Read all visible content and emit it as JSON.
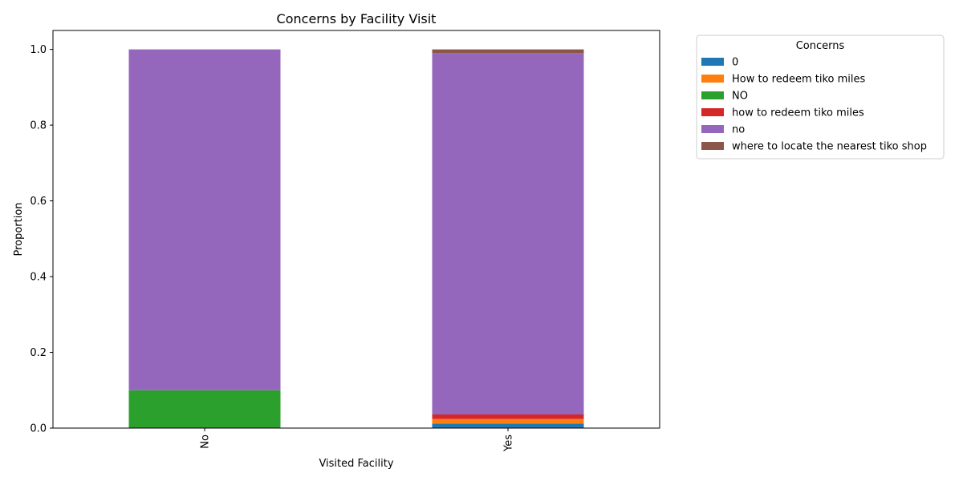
{
  "chart_data": {
    "type": "bar",
    "stacked": true,
    "title": "Concerns by Facility Visit",
    "xlabel": "Visited Facility",
    "ylabel": "Proportion",
    "categories": [
      "No",
      "Yes"
    ],
    "ylim": [
      0,
      1.05
    ],
    "yticks": [
      "0.0",
      "0.2",
      "0.4",
      "0.6",
      "0.8",
      "1.0"
    ],
    "grid": false,
    "legend_title": "Concerns",
    "legend_position": "outside-right",
    "series": [
      {
        "name": "0",
        "color": "#1f77b4",
        "values": [
          0,
          0.012
        ]
      },
      {
        "name": "How to redeem tiko miles",
        "color": "#ff7f0e",
        "values": [
          0,
          0.012
        ]
      },
      {
        "name": "NO",
        "color": "#2ca02c",
        "values": [
          0.1,
          0
        ]
      },
      {
        "name": "how to redeem tiko miles",
        "color": "#d62728",
        "values": [
          0,
          0.012
        ]
      },
      {
        "name": "no",
        "color": "#9467bd",
        "values": [
          0.9,
          0.954
        ]
      },
      {
        "name": "where to locate the nearest tiko shop",
        "color": "#8c564b",
        "values": [
          0,
          0.01
        ]
      }
    ]
  }
}
